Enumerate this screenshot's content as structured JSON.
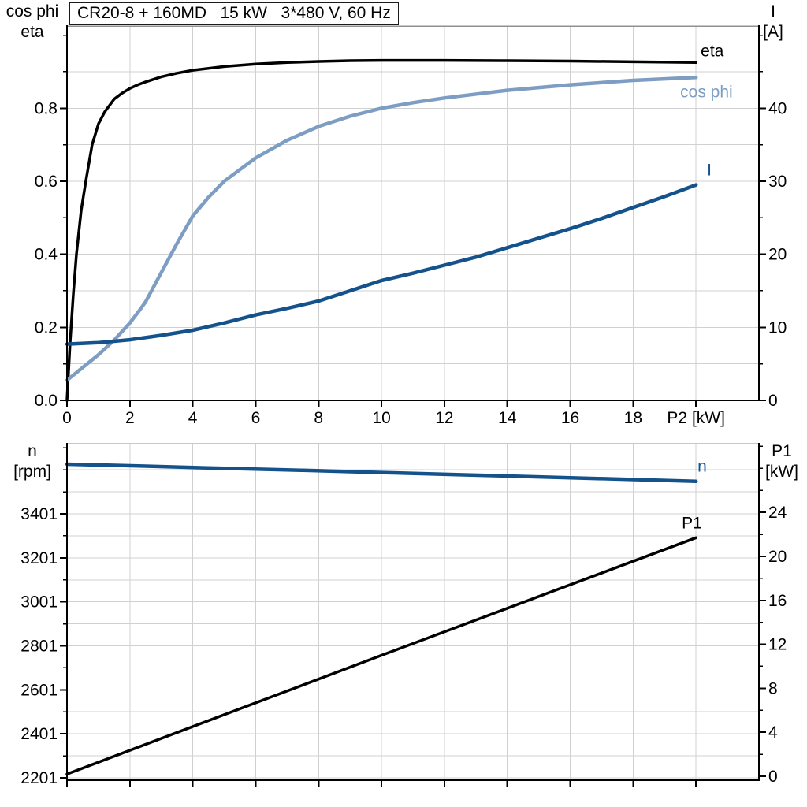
{
  "title_box": {
    "text": "CR20-8 + 160MD   15 kW   3*480 V, 60 Hz"
  },
  "colors": {
    "background": "#ffffff",
    "axis": "#000000",
    "grid": "#d0d0d0",
    "frame_top": "#909090",
    "black_curve": "#000000",
    "dark_blue_curve": "#14528c",
    "light_blue_curve": "#7d9dc2"
  },
  "chart_data": [
    {
      "type": "line",
      "name": "pump-motor-curves-chart",
      "title": "CR20-8 + 160MD   15 kW   3*480 V, 60 Hz",
      "xlabel": "P2 [kW]",
      "grid": true,
      "x_axis": {
        "lim": [
          0,
          22
        ],
        "grid_step": 2,
        "tick_values": [
          0,
          2,
          4,
          6,
          8,
          10,
          12,
          14,
          16,
          18,
          20
        ],
        "tick_labels": [
          "0",
          "2",
          "4",
          "6",
          "8",
          "10",
          "12",
          "14",
          "16",
          "18",
          "P2 [kW]"
        ]
      },
      "left_axis": {
        "lines": [
          "cos phi",
          "eta"
        ],
        "lim": [
          0,
          1.025
        ],
        "tick_values": [
          0,
          0.2,
          0.4,
          0.6,
          0.8
        ],
        "tick_labels": [
          "0.0",
          "0.2",
          "0.4",
          "0.6",
          "0.8"
        ],
        "minor_step": 0.1
      },
      "right_axis": {
        "lines": [
          "I",
          "[A]"
        ],
        "lim": [
          0,
          51.25
        ],
        "tick_values": [
          0,
          10,
          20,
          30,
          40
        ],
        "tick_labels": [
          "0",
          "10",
          "20",
          "30",
          "40"
        ],
        "minor_step": 5
      },
      "series": [
        {
          "name": "eta",
          "axis": "left",
          "color_key": "black_curve",
          "width": 3.5,
          "label_offset": [
            6,
            -8
          ],
          "x": [
            0,
            0.1,
            0.2,
            0.3,
            0.45,
            0.6,
            0.8,
            1.0,
            1.2,
            1.5,
            1.75,
            2,
            2.25,
            2.5,
            3,
            3.5,
            4,
            5,
            6,
            7,
            8,
            9,
            10,
            12,
            14,
            16,
            18,
            20
          ],
          "y": [
            0,
            0.16,
            0.29,
            0.4,
            0.52,
            0.6,
            0.7,
            0.757,
            0.79,
            0.825,
            0.841,
            0.854,
            0.864,
            0.872,
            0.886,
            0.896,
            0.904,
            0.914,
            0.921,
            0.925,
            0.928,
            0.93,
            0.931,
            0.931,
            0.93,
            0.929,
            0.927,
            0.925
          ]
        },
        {
          "name": "cos phi",
          "axis": "left",
          "color_key": "light_blue_curve",
          "width": 4.5,
          "label_offset": [
            -20,
            25
          ],
          "x": [
            0,
            0.5,
            1,
            1.5,
            2,
            2.25,
            2.5,
            2.75,
            3,
            3.5,
            4,
            4.5,
            5,
            6,
            7,
            8,
            9,
            10,
            11,
            12,
            14,
            16,
            18,
            20
          ],
          "y": [
            0.055,
            0.09,
            0.125,
            0.165,
            0.212,
            0.24,
            0.27,
            0.31,
            0.35,
            0.43,
            0.505,
            0.556,
            0.6,
            0.664,
            0.712,
            0.75,
            0.778,
            0.8,
            0.815,
            0.828,
            0.849,
            0.864,
            0.876,
            0.884
          ]
        },
        {
          "name": "I",
          "axis": "right",
          "color_key": "dark_blue_curve",
          "width": 4.5,
          "label_offset": [
            14,
            -12
          ],
          "x": [
            0,
            1,
            2,
            3,
            4,
            5,
            6,
            7,
            8,
            9,
            10,
            11,
            12,
            13,
            14,
            15,
            16,
            17,
            18,
            19,
            20
          ],
          "y": [
            7.7,
            7.9,
            8.3,
            8.9,
            9.6,
            10.6,
            11.7,
            12.6,
            13.6,
            15.0,
            16.4,
            17.4,
            18.5,
            19.6,
            20.9,
            22.2,
            23.5,
            24.9,
            26.4,
            27.9,
            29.5
          ]
        }
      ]
    },
    {
      "type": "line",
      "name": "speed-input-power-chart",
      "title": "",
      "xlabel": "",
      "grid": true,
      "x_axis": {
        "lim": [
          0,
          22
        ],
        "grid_step": 2,
        "tick_values": [
          0,
          2,
          4,
          6,
          8,
          10,
          12,
          14,
          16,
          18,
          20
        ],
        "tick_labels": []
      },
      "left_axis": {
        "lines": [
          "n",
          "[rpm]"
        ],
        "lim": [
          2190,
          3720
        ],
        "tick_values": [
          2201,
          2401,
          2601,
          2801,
          3001,
          3201,
          3401
        ],
        "tick_labels": [
          "2201",
          "2401",
          "2601",
          "2801",
          "3001",
          "3201",
          "3401"
        ],
        "minor_step": 100,
        "minor_anchor": 2201
      },
      "right_axis": {
        "lines": [
          "P1",
          "[kW]"
        ],
        "lim": [
          -0.36,
          30.25
        ],
        "tick_values": [
          0,
          4,
          8,
          12,
          16,
          20,
          24
        ],
        "tick_labels": [
          "0",
          "4",
          "8",
          "12",
          "16",
          "20",
          "24"
        ],
        "minor_step": 2
      },
      "series": [
        {
          "name": "n",
          "axis": "left",
          "color_key": "dark_blue_curve",
          "width": 4.5,
          "label_offset": [
            2,
            -12
          ],
          "x": [
            0,
            2.5,
            5,
            7.5,
            10,
            12.5,
            15,
            17.5,
            20
          ],
          "y": [
            3627,
            3618,
            3608,
            3599,
            3589,
            3579,
            3569,
            3559,
            3549
          ]
        },
        {
          "name": "P1",
          "axis": "right",
          "color_key": "black_curve",
          "width": 3.5,
          "label_offset": [
            -18,
            -12
          ],
          "x": [
            0,
            5,
            10,
            15,
            20
          ],
          "y": [
            0.2,
            5.6,
            11.0,
            16.35,
            21.7
          ]
        }
      ]
    }
  ]
}
